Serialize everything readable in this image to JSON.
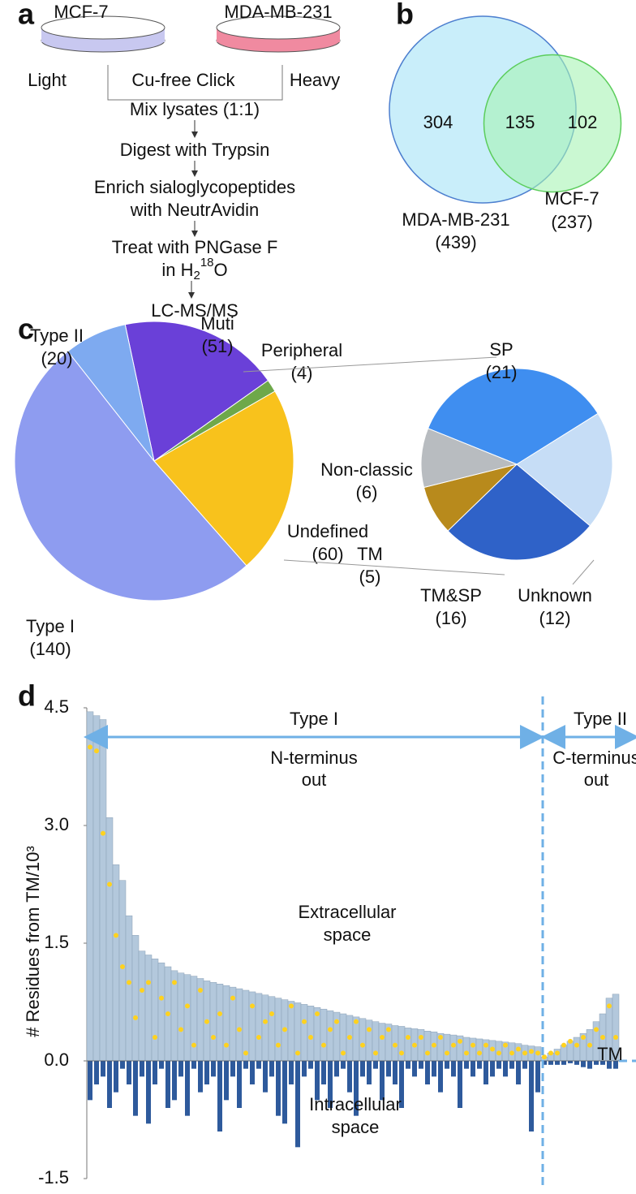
{
  "panel_a": {
    "label": "a",
    "dishes": [
      {
        "name": "MCF-7",
        "label": "Light"
      },
      {
        "name": "MDA-MB-231",
        "label": "Heavy"
      }
    ],
    "reaction": "Cu-free Click",
    "steps": [
      [
        "Mix lysates (1:1)"
      ],
      [
        "Digest with Trypsin"
      ],
      [
        "Enrich sialoglycopeptides",
        "with NeutrAvidin"
      ],
      [
        "Treat with PNGase F",
        {
          "text": "in H",
          "sub": "2",
          "sup": "18",
          "end": "O"
        }
      ],
      [
        "LC-MS/MS"
      ]
    ]
  },
  "chart_data": [
    {
      "type": "venn",
      "panel_label": "b",
      "values": [
        304,
        135,
        102
      ],
      "sets": [
        {
          "name": "MDA-MB-231",
          "total": 439,
          "total_label": "(439)",
          "color": "#c9eefa",
          "stroke": "#4d7fcf"
        },
        {
          "name": "MCF-7",
          "total": 237,
          "total_label": "(237)",
          "color": "#a6f3b4",
          "stroke": "#5ccd5c"
        }
      ]
    },
    {
      "type": "pie",
      "panel_label": "c",
      "categories": [
        "Muti",
        "Peripheral",
        "Undefined",
        "Type I",
        "Type II"
      ],
      "values": [
        51,
        4,
        60,
        140,
        20
      ],
      "value_labels": [
        "(51)",
        "(4)",
        "(60)",
        "(140)",
        "(20)"
      ],
      "colors": [
        "#6a40d8",
        "#6ea84a",
        "#f8c21c",
        "#8e9cf0",
        "#7eaaf0"
      ]
    },
    {
      "type": "pie",
      "categories": [
        "SP",
        "Unknown",
        "TM&SP",
        "TM",
        "Non-classic"
      ],
      "values": [
        21,
        12,
        16,
        5,
        6
      ],
      "value_labels": [
        "(21)",
        "(12)",
        "(16)",
        "(5)",
        "(6)"
      ],
      "colors": [
        "#3f8ef0",
        "#c6ddf6",
        "#2f62c8",
        "#b88a1c",
        "#b8bcc0"
      ]
    },
    {
      "type": "bar",
      "panel_label": "d",
      "y_label": "# Residues from TM/10³",
      "ylim": [
        -1.5,
        4.5
      ],
      "yticks": [
        -1.5,
        {
          "value": 0,
          "label": "0.0"
        },
        1.5,
        {
          "value": 3,
          "label": "3.0"
        },
        4.5
      ],
      "colors": {
        "extracellular": "#b3c8dc",
        "intracellular": "#2e5a9c",
        "sites": "#ffd21f"
      },
      "annotations": {
        "extracellular": [
          "Extracellular",
          "space"
        ],
        "intracellular": [
          "Intracellular",
          "space"
        ],
        "tm": "TM"
      },
      "groups": [
        {
          "name": "Type I",
          "note": [
            "N-terminus",
            "out"
          ],
          "extracellular": [
            4.45,
            4.4,
            4.35,
            3.1,
            2.5,
            2.3,
            1.85,
            1.6,
            1.4,
            1.35,
            1.3,
            1.25,
            1.2,
            1.15,
            1.12,
            1.1,
            1.08,
            1.05,
            1.02,
            1.0,
            0.98,
            0.96,
            0.94,
            0.92,
            0.9,
            0.88,
            0.86,
            0.84,
            0.82,
            0.8,
            0.78,
            0.76,
            0.74,
            0.72,
            0.7,
            0.68,
            0.66,
            0.64,
            0.62,
            0.6,
            0.58,
            0.56,
            0.54,
            0.52,
            0.5,
            0.48,
            0.47,
            0.45,
            0.44,
            0.42,
            0.41,
            0.4,
            0.38,
            0.37,
            0.35,
            0.34,
            0.33,
            0.32,
            0.3,
            0.29,
            0.28,
            0.27,
            0.26,
            0.25,
            0.24,
            0.23,
            0.22,
            0.2,
            0.19,
            0.18
          ],
          "intracellular": [
            -0.5,
            -0.3,
            -0.2,
            -0.6,
            -0.4,
            -0.1,
            -0.3,
            -0.7,
            -0.2,
            -0.8,
            -0.3,
            -0.1,
            -0.6,
            -0.5,
            -0.2,
            -0.7,
            -0.1,
            -0.4,
            -0.3,
            -0.2,
            -0.9,
            -0.5,
            -0.2,
            -0.6,
            -0.1,
            -0.3,
            -0.1,
            -0.4,
            -0.2,
            -0.7,
            -0.8,
            -0.3,
            -1.1,
            -0.2,
            -0.1,
            -0.5,
            -0.3,
            -0.6,
            -0.2,
            -0.1,
            -0.4,
            -0.7,
            -0.2,
            -0.3,
            -0.1,
            -0.5,
            -0.2,
            -0.3,
            -0.6,
            -0.1,
            -0.2,
            -0.1,
            -0.3,
            -0.2,
            -0.4,
            -0.1,
            -0.2,
            -0.6,
            -0.1,
            -0.2,
            -0.1,
            -0.3,
            -0.2,
            -0.1,
            -0.2,
            -0.1,
            -0.3,
            -0.1,
            -0.9,
            -0.4
          ],
          "sites": [
            4.0,
            3.95,
            2.9,
            2.25,
            1.6,
            1.2,
            1.0,
            0.55,
            0.9,
            1.0,
            0.3,
            0.8,
            0.6,
            1.0,
            0.4,
            0.7,
            0.2,
            0.9,
            0.5,
            0.3,
            0.6,
            0.2,
            0.8,
            0.4,
            0.1,
            0.7,
            0.3,
            0.5,
            0.6,
            0.2,
            0.4,
            0.7,
            0.1,
            0.5,
            0.3,
            0.6,
            0.2,
            0.4,
            0.5,
            0.1,
            0.3,
            0.5,
            0.2,
            0.4,
            0.1,
            0.3,
            0.4,
            0.2,
            0.1,
            0.3,
            0.2,
            0.3,
            0.1,
            0.2,
            0.3,
            0.1,
            0.2,
            0.25,
            0.1,
            0.2,
            0.1,
            0.2,
            0.15,
            0.1,
            0.2,
            0.1,
            0.15,
            0.1,
            0.12,
            0.1
          ]
        },
        {
          "name": "Type II",
          "note": [
            "C-terminus",
            "out"
          ],
          "extracellular": [
            0.05,
            0.1,
            0.15,
            0.2,
            0.25,
            0.3,
            0.35,
            0.4,
            0.5,
            0.6,
            0.8,
            0.85
          ],
          "intracellular": [
            -0.05,
            -0.05,
            -0.05,
            -0.05,
            -0.03,
            -0.05,
            -0.08,
            -0.1,
            -0.05,
            -0.05,
            -0.1,
            -0.1
          ],
          "sites": [
            0.05,
            0.1,
            0.1,
            0.2,
            0.25,
            0.2,
            0.3,
            0.2,
            0.4,
            0.3,
            0.7,
            0.3
          ]
        }
      ]
    }
  ]
}
